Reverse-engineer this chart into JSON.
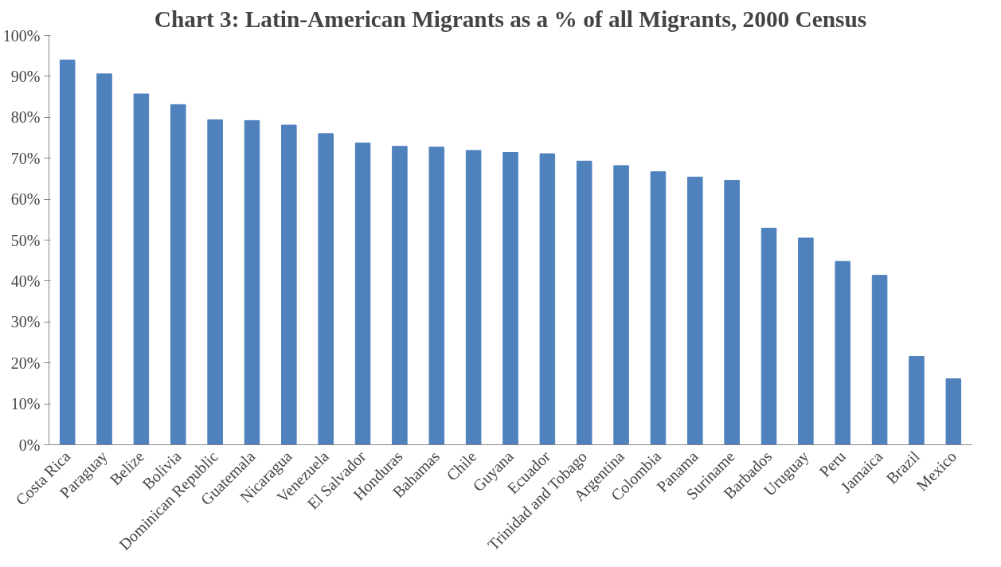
{
  "chart_data": {
    "type": "bar",
    "title": "Chart 3: Latin-American Migrants as a % of all Migrants, 2000 Census",
    "categories": [
      "Costa Rica",
      "Paraguay",
      "Belize",
      "Bolivia",
      "Dominican Republic",
      "Guatemala",
      "Nicaragua",
      "Venezuela",
      "El Salvador",
      "Honduras",
      "Bahamas",
      "Chile",
      "Guyana",
      "Ecuador",
      "Trinidad and Tobago",
      "Argentina",
      "Colombia",
      "Panama",
      "Suriname",
      "Barbados",
      "Uruguay",
      "Peru",
      "Jamaica",
      "Brazil",
      "Mexico"
    ],
    "values": [
      94.0,
      90.6,
      85.7,
      83.1,
      79.4,
      79.2,
      78.1,
      76.0,
      73.7,
      72.9,
      72.7,
      71.9,
      71.4,
      71.1,
      69.3,
      68.2,
      66.7,
      65.4,
      64.6,
      52.9,
      50.5,
      44.8,
      41.4,
      21.6,
      16.1
    ],
    "color": "#4f81bd",
    "ylim": [
      0,
      100
    ],
    "yticks": [
      {
        "value": 0,
        "label": "0%"
      },
      {
        "value": 10,
        "label": "10%"
      },
      {
        "value": 20,
        "label": "20%"
      },
      {
        "value": 30,
        "label": "30%"
      },
      {
        "value": 40,
        "label": "40%"
      },
      {
        "value": 50,
        "label": "50%"
      },
      {
        "value": 60,
        "label": "60%"
      },
      {
        "value": 70,
        "label": "70%"
      },
      {
        "value": 80,
        "label": "80%"
      },
      {
        "value": 90,
        "label": "90%"
      },
      {
        "value": 100,
        "label": "100%"
      }
    ],
    "grid": false
  }
}
